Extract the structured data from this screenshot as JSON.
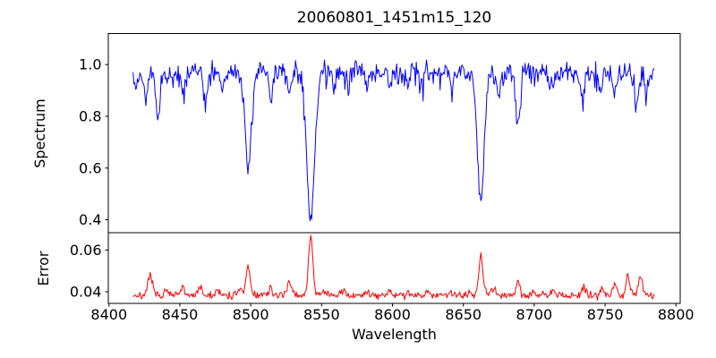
{
  "chart_data": {
    "type": "line",
    "title": "20060801_1451m15_120",
    "xlabel": "Wavelength",
    "grid": false,
    "legend": "none",
    "background": "#ffffff",
    "axis_color": "#000000",
    "xlim": [
      8399.5,
      8803
    ],
    "x_range": [
      8417,
      8785
    ],
    "sample_step": 0.6,
    "x_ticks": [
      8400,
      8450,
      8500,
      8550,
      8600,
      8650,
      8700,
      8750,
      8800
    ],
    "x_tick_labels": [
      "8400",
      "8450",
      "8500",
      "8550",
      "8600",
      "8650",
      "8700",
      "8750",
      "8800"
    ],
    "panels": [
      {
        "name": "spectrum",
        "ylabel": "Spectrum",
        "color": "#0000ff",
        "ylim": [
          0.35,
          1.12
        ],
        "y_ticks": [
          0.4,
          0.6,
          0.8,
          1.0
        ],
        "y_tick_labels": [
          "0.4",
          "0.6",
          "0.8",
          "1.0"
        ],
        "continuum": 0.963,
        "continuum_curve": 0.01,
        "clip_max": 1.06,
        "noise": {
          "seed": 42,
          "tri_amp": 0.037,
          "up_prob": 0.045,
          "down_prob": 0.115,
          "spike_amp": 0.05
        },
        "absorption_lines": [
          [
            8419.0,
            0.05,
            1.0
          ],
          [
            8426.0,
            0.105,
            1.2
          ],
          [
            8434.5,
            0.175,
            1.4
          ],
          [
            8445.0,
            0.05,
            1.0
          ],
          [
            8452.0,
            0.055,
            1.1
          ],
          [
            8468.0,
            0.11,
            1.3
          ],
          [
            8480.0,
            0.065,
            1.1
          ],
          [
            8492.0,
            0.05,
            1.0
          ],
          [
            8498.2,
            0.37,
            2.1
          ],
          [
            8514.0,
            0.09,
            1.2
          ],
          [
            8527.0,
            0.07,
            1.3
          ],
          [
            8542.3,
            0.58,
            2.7
          ],
          [
            8559.0,
            0.06,
            1.1
          ],
          [
            8569.0,
            0.06,
            1.1
          ],
          [
            8582.0,
            0.065,
            1.1
          ],
          [
            8598.0,
            0.06,
            1.1
          ],
          [
            8611.0,
            0.065,
            1.1
          ],
          [
            8621.0,
            0.05,
            1.0
          ],
          [
            8642.0,
            0.045,
            1.0
          ],
          [
            8662.3,
            0.5,
            2.4
          ],
          [
            8674.5,
            0.09,
            1.2
          ],
          [
            8688.5,
            0.22,
            1.5
          ],
          [
            8713.0,
            0.05,
            1.1
          ],
          [
            8734.0,
            0.1,
            1.3
          ],
          [
            8747.0,
            0.055,
            1.1
          ],
          [
            8757.0,
            0.07,
            1.1
          ],
          [
            8772.0,
            0.13,
            1.5
          ],
          [
            8779.0,
            0.06,
            1.0
          ]
        ],
        "key_minima": [
          {
            "wavelength": 8498,
            "flux": 0.6
          },
          {
            "wavelength": 8542,
            "flux": 0.39
          },
          {
            "wavelength": 8662,
            "flux": 0.46
          },
          {
            "wavelength": 8688,
            "flux": 0.74
          }
        ]
      },
      {
        "name": "error",
        "ylabel": "Error",
        "color": "#ff0000",
        "ylim": [
          0.0344,
          0.0683
        ],
        "y_ticks": [
          0.04,
          0.06
        ],
        "y_tick_labels": [
          "0.04",
          "0.06"
        ],
        "baseline": 0.0383,
        "noise": {
          "seed": 7,
          "tri_amp": 0.0018,
          "up_prob": 0.05,
          "down_prob": 0.0,
          "spike_amp": 0.0018
        },
        "emission_peaks": [
          [
            8429.0,
            0.0095,
            1.4
          ],
          [
            8440.0,
            0.0028,
            1.1
          ],
          [
            8452.0,
            0.0035,
            1.2
          ],
          [
            8464.0,
            0.0042,
            1.3
          ],
          [
            8476.0,
            0.002,
            1.0
          ],
          [
            8492.0,
            0.0038,
            1.1
          ],
          [
            8498.2,
            0.0132,
            1.5
          ],
          [
            8514.0,
            0.003,
            1.1
          ],
          [
            8527.0,
            0.0072,
            1.3
          ],
          [
            8542.3,
            0.028,
            1.5
          ],
          [
            8551.0,
            0.003,
            1.1
          ],
          [
            8566.0,
            0.002,
            1.0
          ],
          [
            8583.0,
            0.002,
            1.0
          ],
          [
            8598.0,
            0.0025,
            1.0
          ],
          [
            8611.0,
            0.002,
            1.0
          ],
          [
            8625.0,
            0.003,
            1.0
          ],
          [
            8640.0,
            0.0018,
            1.0
          ],
          [
            8655.0,
            0.002,
            1.0
          ],
          [
            8662.3,
            0.0192,
            1.5
          ],
          [
            8671.0,
            0.004,
            1.2
          ],
          [
            8688.5,
            0.007,
            1.3
          ],
          [
            8700.0,
            0.002,
            1.0
          ],
          [
            8713.0,
            0.002,
            1.0
          ],
          [
            8735.0,
            0.0035,
            1.2
          ],
          [
            8748.0,
            0.004,
            1.3
          ],
          [
            8757.0,
            0.005,
            1.5
          ],
          [
            8766.0,
            0.0095,
            1.4
          ],
          [
            8775.0,
            0.0085,
            1.6
          ]
        ],
        "key_peaks": [
          {
            "wavelength": 8429,
            "error": 0.048
          },
          {
            "wavelength": 8498,
            "error": 0.052
          },
          {
            "wavelength": 8527,
            "error": 0.046
          },
          {
            "wavelength": 8542,
            "error": 0.067
          },
          {
            "wavelength": 8662,
            "error": 0.058
          },
          {
            "wavelength": 8688,
            "error": 0.046
          },
          {
            "wavelength": 8766,
            "error": 0.048
          },
          {
            "wavelength": 8775,
            "error": 0.048
          }
        ]
      }
    ]
  }
}
